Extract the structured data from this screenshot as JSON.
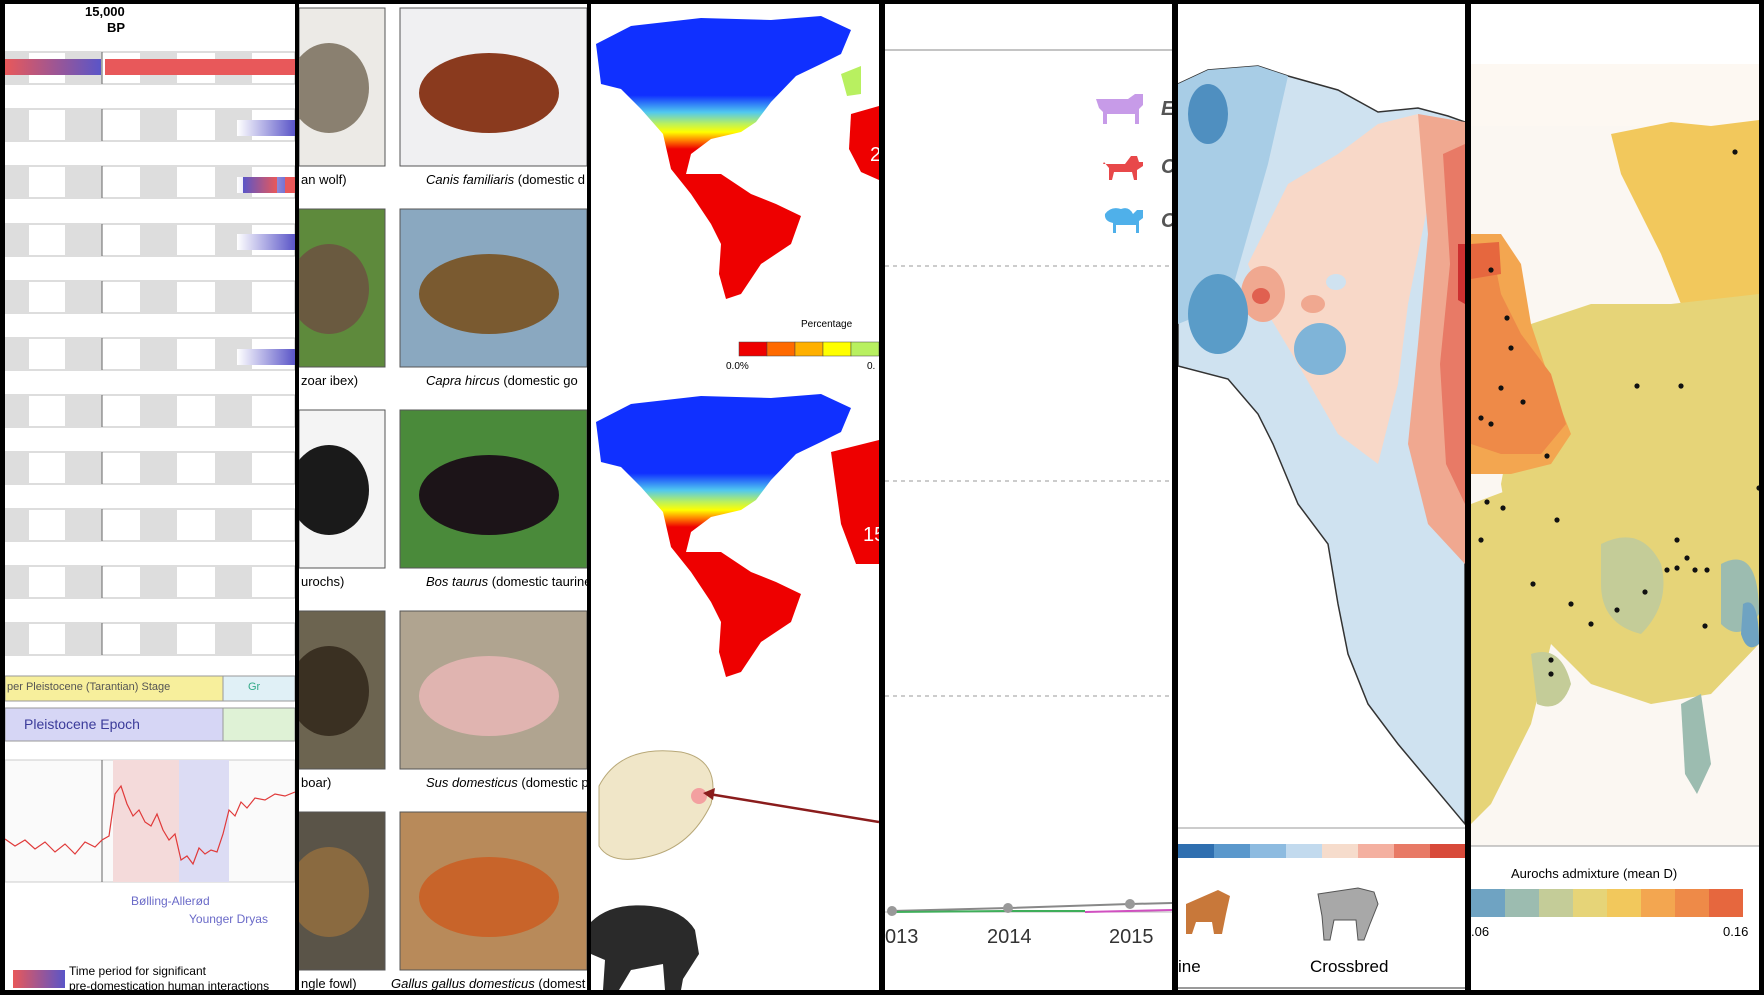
{
  "timeline": {
    "header_value": "15,000",
    "header_unit": "BP",
    "stage_label": "per  Pleistocene (Tarantian) Stage",
    "stage_next": "Gr",
    "epoch_label": "Pleistocene Epoch",
    "bolling": "Bølling-Allerød",
    "younger": "Younger Dryas",
    "legend_text_1": "Time period for significant",
    "legend_text_2": "pre-domestication human interactions",
    "colors": {
      "red": "#e8585a",
      "blue": "#5a55c8",
      "stage": "#f7ef9c",
      "epoch": "#d6d6f5"
    }
  },
  "animals": {
    "captions": [
      {
        "wild": "an wolf)",
        "domestic_latin": "Canis familiaris",
        "domestic_rest": " (domestic d"
      },
      {
        "wild": "zoar ibex)",
        "domestic_latin": "Capra hircus",
        "domestic_rest": " (domestic go"
      },
      {
        "wild": "urochs)",
        "domestic_latin": "Bos taurus",
        "domestic_rest": " (domestic taurine"
      },
      {
        "wild": "boar)",
        "domestic_latin": "Sus domesticus",
        "domestic_rest": " (domestic p"
      },
      {
        "wild": "ngle fowl)",
        "domestic_latin": "Gallus gallus domesticus",
        "domestic_rest": " (domest"
      }
    ]
  },
  "maps": {
    "legend_title": "Percentage",
    "legend_min": "0.0%",
    "legend_max": "0.",
    "label_top": "2",
    "label_bottom": "15",
    "colors": [
      "#ee0000",
      "#ff6a00",
      "#ffb000",
      "#ffff00",
      "#b8f060"
    ]
  },
  "line_chart": {
    "years": [
      "013",
      "2014",
      "2015"
    ],
    "legend_icons": [
      "cow-icon",
      "dog-icon",
      "sheep-icon"
    ],
    "legend_letters": [
      "E",
      "C",
      "C"
    ],
    "icon_colors": [
      "#c79be8",
      "#e8484a",
      "#4fb0ea"
    ]
  },
  "africa": {
    "labels": [
      "ine",
      "Crossbred"
    ]
  },
  "europe": {
    "legend_title": "Aurochs admixture (mean D)",
    "legend_min": ".06",
    "legend_max": "0.16",
    "colors": [
      "#6fa3c2",
      "#9cbcb0",
      "#c4cc98",
      "#e6d478",
      "#f2c85c",
      "#f3a650",
      "#ee8a48",
      "#e6673e"
    ]
  }
}
